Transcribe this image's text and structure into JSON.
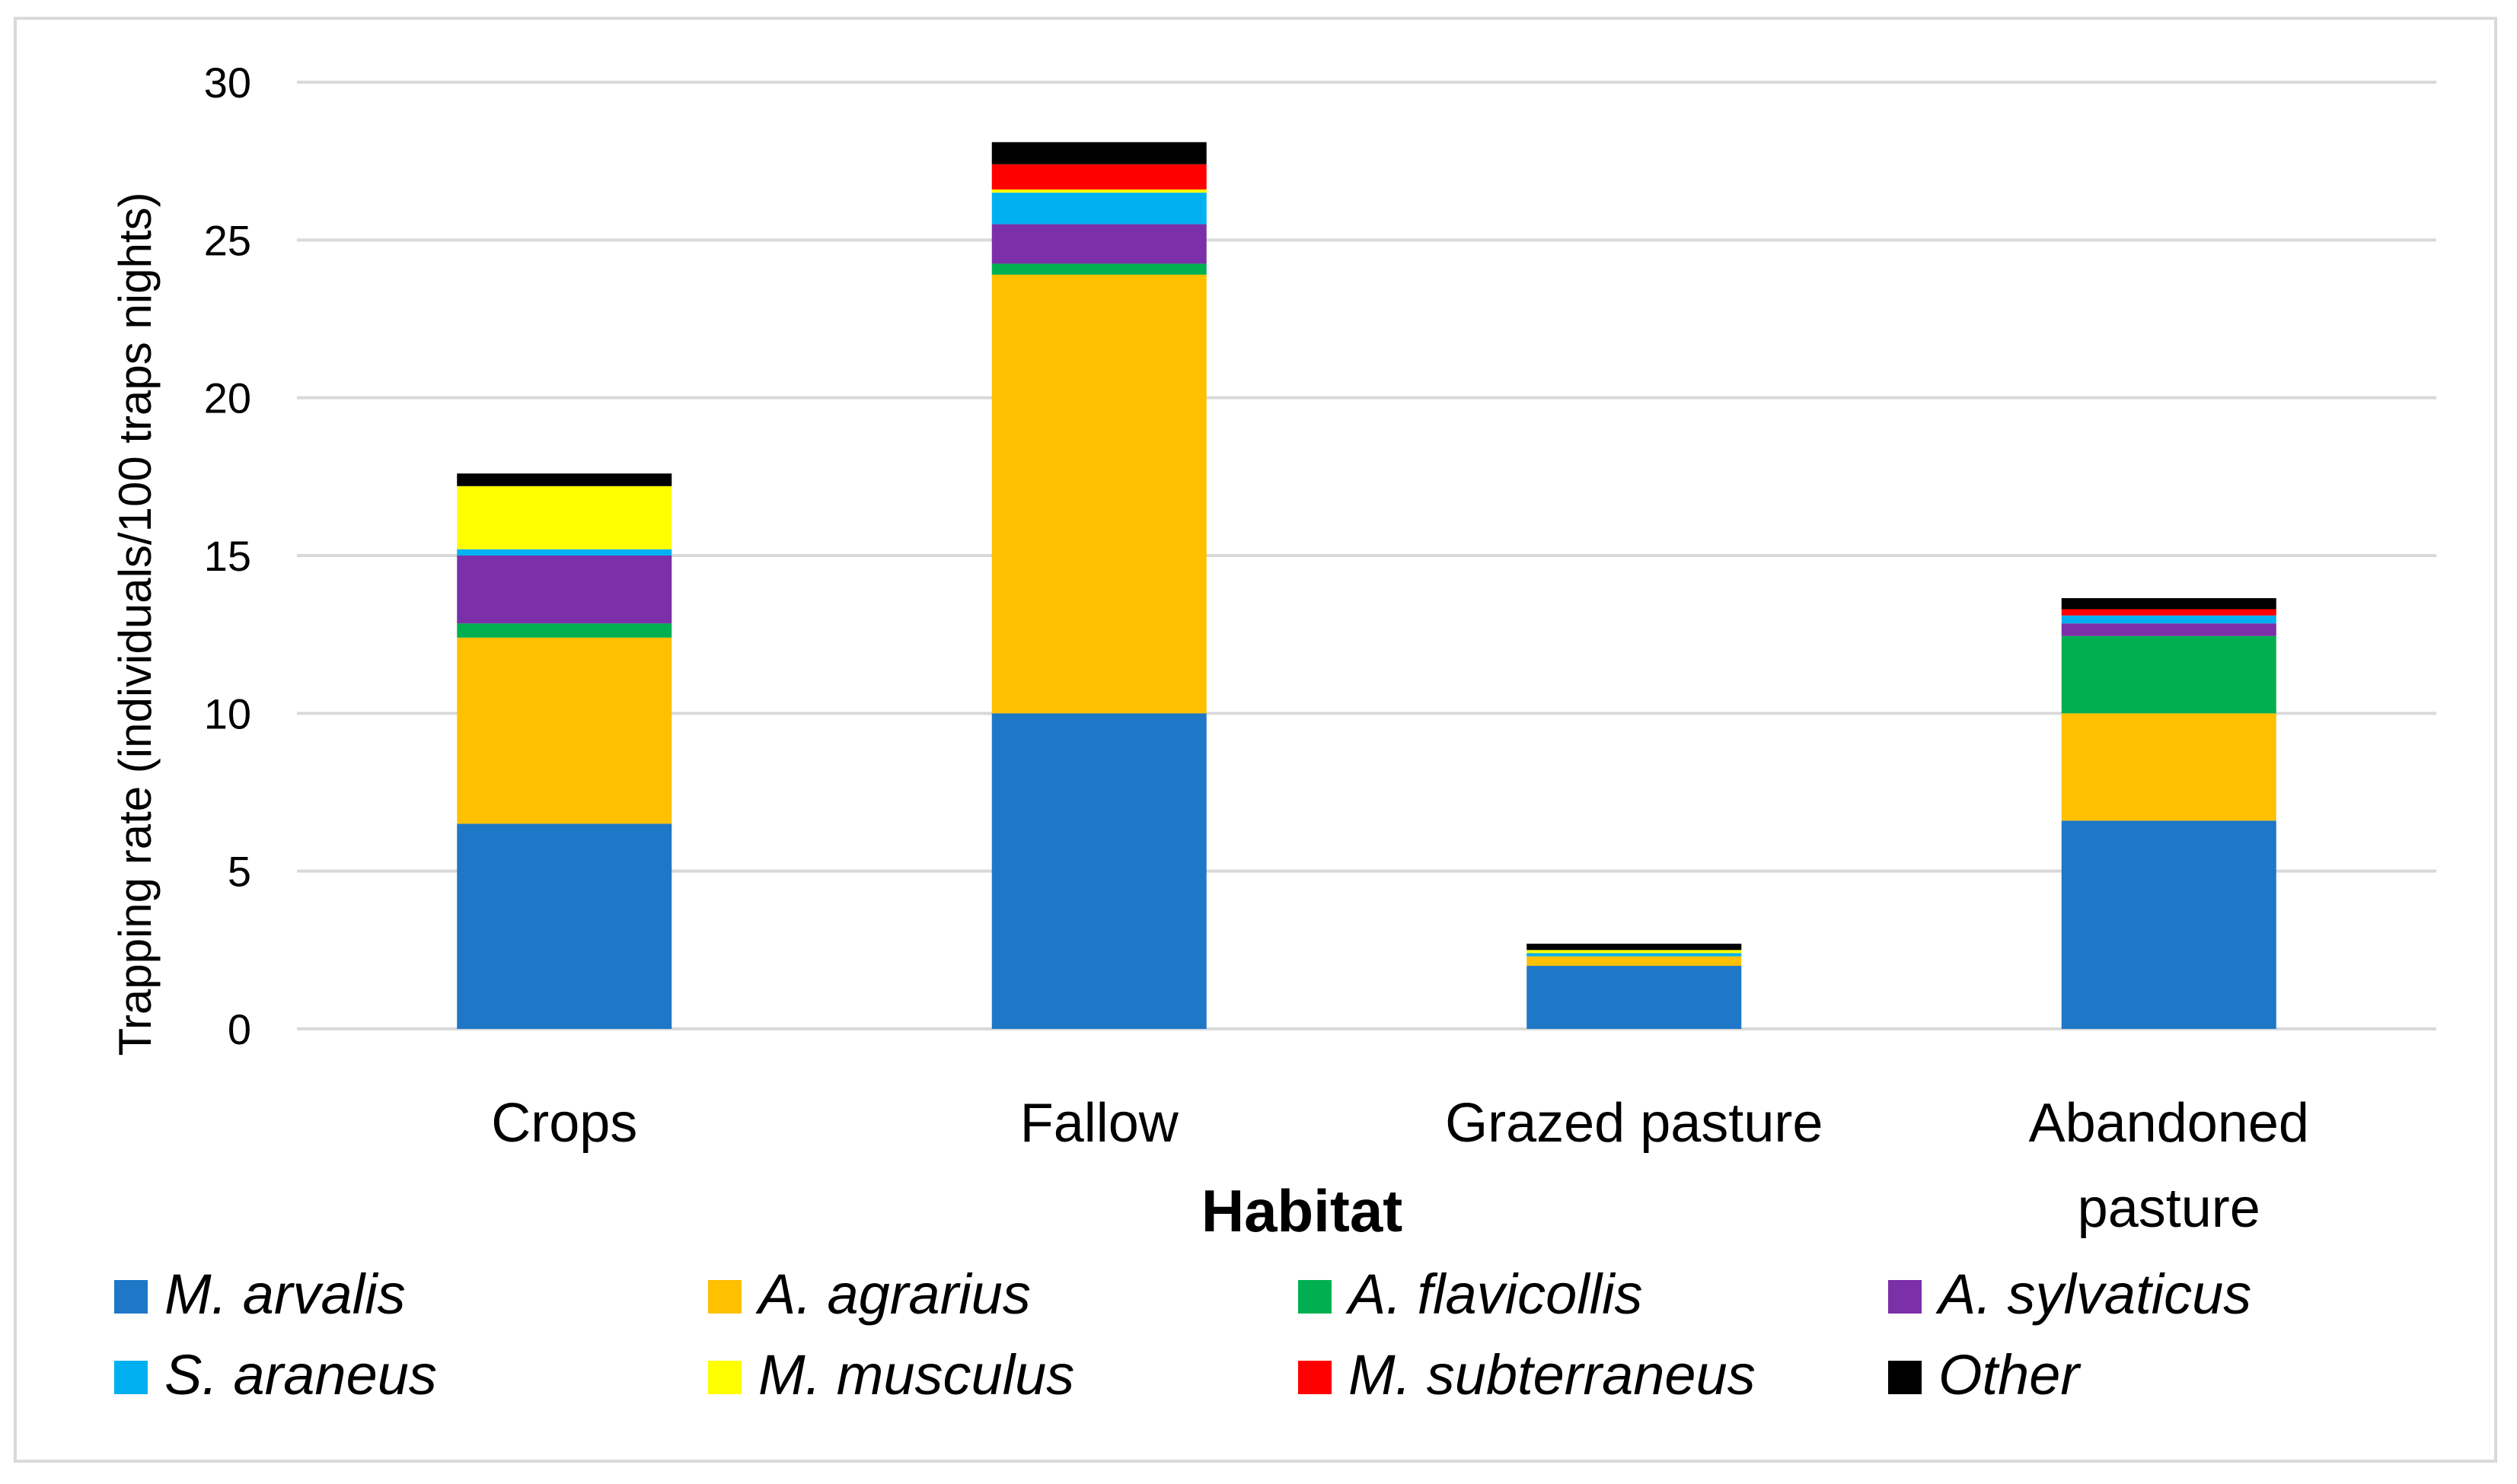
{
  "chart_data": {
    "type": "bar",
    "stacked": true,
    "title": "",
    "xlabel": "Habitat",
    "ylabel": "Trapping rate (individuals/100 traps nights)",
    "ylim": [
      0,
      30
    ],
    "yticks": [
      0,
      5,
      10,
      15,
      20,
      25,
      30
    ],
    "grid": true,
    "legend_position": "bottom",
    "categories": [
      [
        "Crops"
      ],
      [
        "Fallow"
      ],
      [
        "Grazed pasture"
      ],
      [
        "Abandoned",
        "pasture"
      ]
    ],
    "series": [
      {
        "name": "M. arvalis",
        "color": "#1f77c8",
        "values": [
          6.5,
          10.0,
          2.0,
          6.6
        ]
      },
      {
        "name": "A. agrarius",
        "color": "#ffc000",
        "values": [
          5.9,
          13.9,
          0.3,
          3.4
        ]
      },
      {
        "name": "A. flavicollis",
        "color": "#00b050",
        "values": [
          0.45,
          0.35,
          0.0,
          2.45
        ]
      },
      {
        "name": "A. sylvaticus",
        "color": "#7b2fa8",
        "values": [
          2.15,
          1.25,
          0.0,
          0.4
        ]
      },
      {
        "name": "S. araneus",
        "color": "#00b0f0",
        "values": [
          0.2,
          1.0,
          0.1,
          0.25
        ]
      },
      {
        "name": "M. musculus",
        "color": "#ffff00",
        "values": [
          2.0,
          0.1,
          0.1,
          0.0
        ]
      },
      {
        "name": "M. subterraneus",
        "color": "#ff0000",
        "values": [
          0.0,
          0.8,
          0.0,
          0.2
        ]
      },
      {
        "name": "Other",
        "color": "#000000",
        "values": [
          0.4,
          0.7,
          0.2,
          0.35
        ]
      }
    ]
  }
}
